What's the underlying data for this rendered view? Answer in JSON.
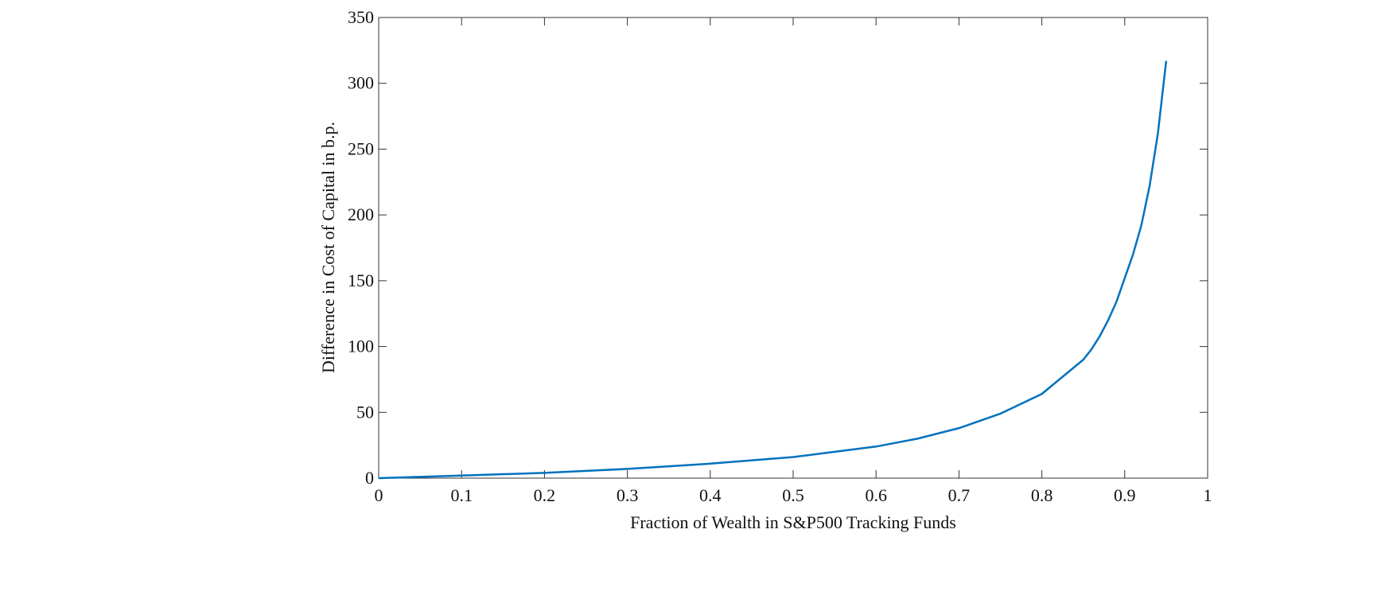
{
  "chart_data": {
    "type": "line",
    "xlabel": "Fraction of Wealth in S&P500 Tracking Funds",
    "ylabel": "Difference in Cost of Capital in b.p.",
    "x": [
      0,
      0.05,
      0.1,
      0.15,
      0.2,
      0.25,
      0.3,
      0.35,
      0.4,
      0.45,
      0.5,
      0.55,
      0.6,
      0.65,
      0.7,
      0.75,
      0.8,
      0.85,
      0.86,
      0.87,
      0.88,
      0.89,
      0.9,
      0.91,
      0.92,
      0.93,
      0.94,
      0.95
    ],
    "series": [
      {
        "color": "#0072bd",
        "values": [
          0,
          1,
          2,
          3,
          4,
          5.5,
          7,
          9,
          11,
          13.5,
          16,
          20,
          24,
          30,
          38,
          49,
          64,
          90,
          98,
          108,
          120,
          134,
          152,
          170,
          192,
          222,
          262,
          317
        ]
      }
    ],
    "xlim": [
      0,
      1
    ],
    "xticks": [
      0,
      0.1,
      0.2,
      0.3,
      0.4,
      0.5,
      0.6,
      0.7,
      0.8,
      0.9,
      1
    ],
    "ylim": [
      0,
      350
    ],
    "yticks": [
      0,
      50,
      100,
      150,
      200,
      250,
      300,
      350
    ]
  }
}
